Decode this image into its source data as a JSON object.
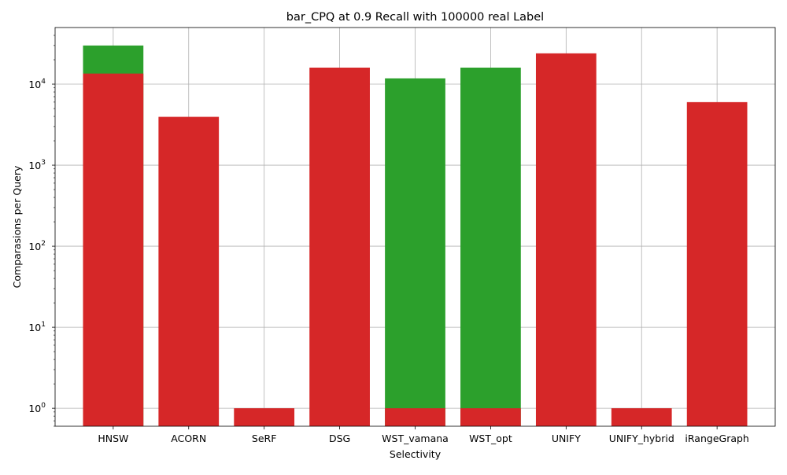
{
  "chart_data": {
    "type": "bar",
    "title": "bar_CPQ at 0.9 Recall with 100000 real Label",
    "xlabel": "Selectivity",
    "ylabel": "Comparasions per Query",
    "yscale": "log",
    "ylim": [
      0.6,
      50000
    ],
    "grid": true,
    "categories": [
      "HNSW",
      "ACORN",
      "SeRF",
      "DSG",
      "WST_vamana",
      "WST_opt",
      "UNIFY",
      "UNIFY_hybrid",
      "iRangeGraph"
    ],
    "y_ticks": [
      {
        "value": 1,
        "base": "10",
        "exp": "0"
      },
      {
        "value": 10,
        "base": "10",
        "exp": "1"
      },
      {
        "value": 100,
        "base": "10",
        "exp": "2"
      },
      {
        "value": 1000,
        "base": "10",
        "exp": "3"
      },
      {
        "value": 10000,
        "base": "10",
        "exp": "4"
      }
    ],
    "series": [
      {
        "color": "#2ca02c",
        "values": [
          30000,
          null,
          null,
          null,
          11800,
          16000,
          null,
          null,
          null
        ]
      },
      {
        "color": "#d62728",
        "values": [
          13500,
          3950,
          1,
          16000,
          1,
          1,
          24000,
          1,
          6000
        ]
      }
    ]
  }
}
